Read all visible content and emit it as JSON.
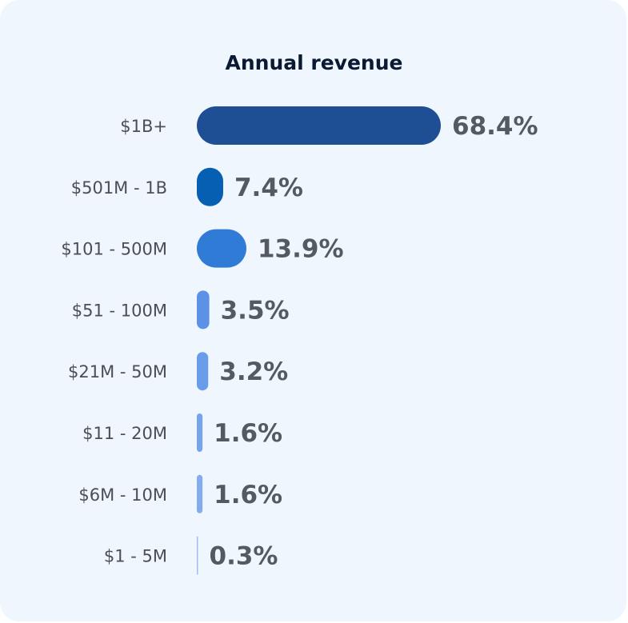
{
  "chart_data": {
    "type": "bar",
    "orientation": "horizontal",
    "title": "Annual revenue",
    "categories": [
      "$1B+",
      "$501M - 1B",
      "$101 - 500M",
      "$51 - 100M",
      "$21M - 50M",
      "$11 - 20M",
      "$6M - 10M",
      "$1 - 5M"
    ],
    "values": [
      68.4,
      7.4,
      13.9,
      3.5,
      3.2,
      1.6,
      1.6,
      0.3
    ],
    "value_labels": [
      "68.4%",
      "7.4%",
      "13.9%",
      "3.5%",
      "3.2%",
      "1.6%",
      "1.6%",
      "0.3%"
    ],
    "colors": [
      "#1e4e93",
      "#075fb3",
      "#2f7bd6",
      "#5c91e6",
      "#6a9de9",
      "#76a4ea",
      "#82aceb",
      "#9dbdf0"
    ],
    "xlim": [
      0,
      68.4
    ],
    "grid": false,
    "legend": "none"
  }
}
